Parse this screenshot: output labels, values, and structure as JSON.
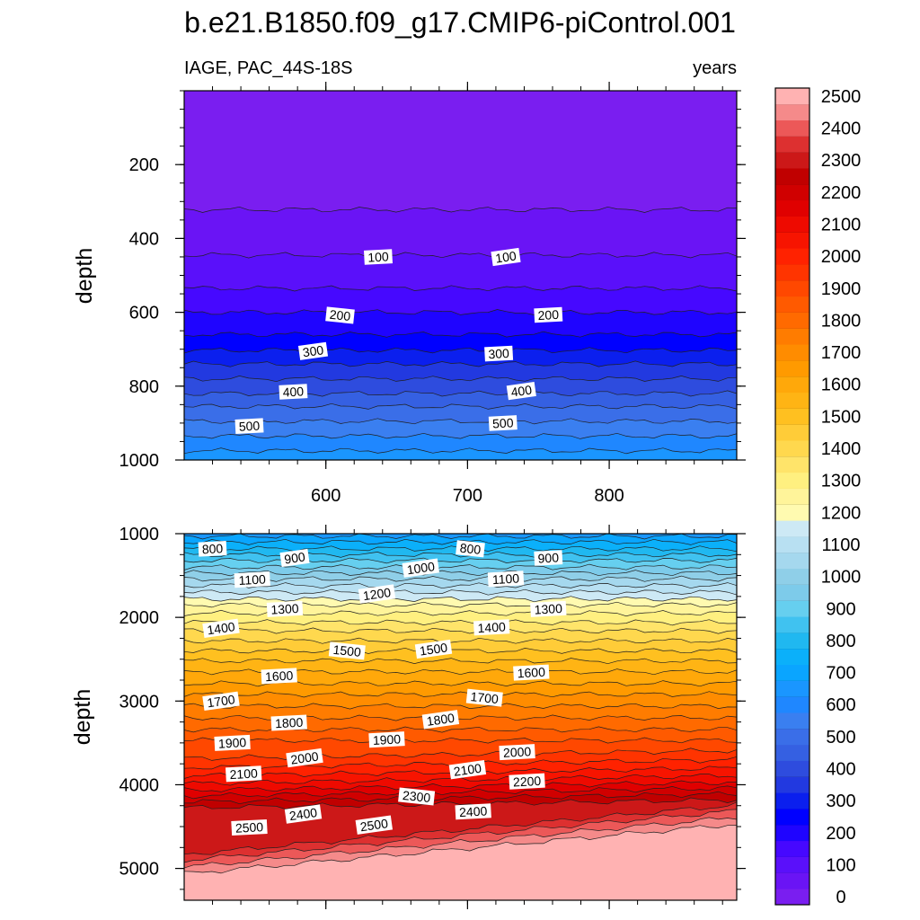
{
  "chart_data": {
    "type": "contour",
    "title": "b.e21.B1850.f09_g17.CMIP6-piControl.001",
    "left_subtitle": "IAGE, PAC_44S-18S",
    "right_subtitle": "years",
    "colorbar": {
      "levels": [
        0,
        50,
        100,
        150,
        200,
        250,
        300,
        350,
        400,
        450,
        500,
        550,
        600,
        650,
        700,
        750,
        800,
        850,
        900,
        950,
        1000,
        1050,
        1100,
        1150,
        1200,
        1250,
        1300,
        1350,
        1400,
        1450,
        1500,
        1550,
        1600,
        1650,
        1700,
        1750,
        1800,
        1850,
        1900,
        1950,
        2000,
        2050,
        2100,
        2150,
        2200,
        2250,
        2300,
        2350,
        2400,
        2450,
        2500
      ],
      "labels": [
        "0",
        "100",
        "200",
        "300",
        "400",
        "500",
        "600",
        "700",
        "800",
        "900",
        "1000",
        "1100",
        "1200",
        "1300",
        "1400",
        "1500",
        "1600",
        "1700",
        "1800",
        "1900",
        "2000",
        "2100",
        "2200",
        "2300",
        "2400",
        "2500"
      ],
      "colors": [
        "#7a1ef0",
        "#6a14f5",
        "#5a10fa",
        "#4608ff",
        "#1f04ff",
        "#0000ff",
        "#0b1fee",
        "#2239e0",
        "#2e4cde",
        "#3560e2",
        "#3a6ee8",
        "#3a7ff0",
        "#1f87ff",
        "#1a96ff",
        "#0aa5ff",
        "#0bb0fa",
        "#20b8f0",
        "#40c2f0",
        "#66cfef",
        "#7dcbea",
        "#8fcfe8",
        "#a5d8ee",
        "#b8e0f2",
        "#cde9f5",
        "#fffab0",
        "#fff49a",
        "#fff080",
        "#ffe46a",
        "#ffd84e",
        "#ffcc38",
        "#ffc020",
        "#ffb414",
        "#ffa80a",
        "#ff9a00",
        "#ff8c00",
        "#ff7c00",
        "#ff6a00",
        "#ff5a00",
        "#ff4800",
        "#ff3400",
        "#ff2200",
        "#f71400",
        "#ee0a00",
        "#e00000",
        "#d00000",
        "#c00000",
        "#cc1818",
        "#dd3030",
        "#ec5858",
        "#f58a8a",
        "#ffb2b2"
      ]
    },
    "panels": [
      {
        "name": "upper",
        "ylabel": "depth",
        "xticks": [
          600,
          700,
          800
        ],
        "yticks": [
          200,
          400,
          600,
          800,
          1000
        ],
        "xlim": [
          500,
          890
        ],
        "ylim": [
          1000,
          0
        ],
        "iso_depths": [
          {
            "value": 50,
            "depth": 322
          },
          {
            "value": 100,
            "depth": 445
          },
          {
            "value": 150,
            "depth": 535
          },
          {
            "value": 200,
            "depth": 600
          },
          {
            "value": 250,
            "depth": 660
          },
          {
            "value": 300,
            "depth": 703
          },
          {
            "value": 350,
            "depth": 740
          },
          {
            "value": 400,
            "depth": 780
          },
          {
            "value": 450,
            "depth": 820
          },
          {
            "value": 500,
            "depth": 855
          },
          {
            "value": 550,
            "depth": 895
          },
          {
            "value": 600,
            "depth": 935
          },
          {
            "value": 650,
            "depth": 975
          }
        ],
        "contour_labels": [
          {
            "text": "100",
            "x": 637,
            "depth": 450
          },
          {
            "text": "100",
            "x": 727,
            "depth": 450
          },
          {
            "text": "200",
            "x": 610,
            "depth": 608
          },
          {
            "text": "200",
            "x": 757,
            "depth": 607
          },
          {
            "text": "300",
            "x": 591,
            "depth": 705
          },
          {
            "text": "300",
            "x": 722,
            "depth": 712
          },
          {
            "text": "400",
            "x": 577,
            "depth": 815
          },
          {
            "text": "400",
            "x": 738,
            "depth": 813
          },
          {
            "text": "500",
            "x": 546,
            "depth": 908
          },
          {
            "text": "500",
            "x": 725,
            "depth": 900
          }
        ]
      },
      {
        "name": "lower",
        "ylabel": "depth",
        "xticks": [
          600,
          700,
          800
        ],
        "yticks": [
          1000,
          2000,
          3000,
          4000,
          5000
        ],
        "xlim": [
          500,
          890
        ],
        "ylim": [
          5380,
          1000
        ],
        "iso_depths": [
          {
            "value": 700,
            "depth": 1030
          },
          {
            "value": 750,
            "depth": 1100
          },
          {
            "value": 800,
            "depth": 1180
          },
          {
            "value": 850,
            "depth": 1250
          },
          {
            "value": 900,
            "depth": 1320
          },
          {
            "value": 950,
            "depth": 1400
          },
          {
            "value": 1000,
            "depth": 1470
          },
          {
            "value": 1050,
            "depth": 1540
          },
          {
            "value": 1100,
            "depth": 1620
          },
          {
            "value": 1150,
            "depth": 1700
          },
          {
            "value": 1200,
            "depth": 1780
          },
          {
            "value": 1250,
            "depth": 1850
          },
          {
            "value": 1300,
            "depth": 1950
          },
          {
            "value": 1350,
            "depth": 2060
          },
          {
            "value": 1400,
            "depth": 2160
          },
          {
            "value": 1450,
            "depth": 2280
          },
          {
            "value": 1500,
            "depth": 2400
          },
          {
            "value": 1550,
            "depth": 2520
          },
          {
            "value": 1600,
            "depth": 2650
          },
          {
            "value": 1650,
            "depth": 2790
          },
          {
            "value": 1700,
            "depth": 2920
          },
          {
            "value": 1750,
            "depth": 3060
          },
          {
            "value": 1800,
            "depth": 3200
          },
          {
            "value": 1850,
            "depth": 3340
          },
          {
            "value": 1900,
            "depth": 3470
          },
          {
            "value": 1950,
            "depth": 3590
          },
          {
            "value": 2000,
            "depth": 3700
          },
          {
            "value": 2050,
            "depth": 3800
          },
          {
            "value": 2100,
            "depth": 3890
          },
          {
            "value": 2150,
            "depth": 3970
          },
          {
            "value": 2200,
            "depth": 4040
          },
          {
            "value": 2250,
            "depth": 4110
          },
          {
            "value": 2300,
            "depth": 4180
          },
          {
            "value": 2350,
            "depth": 4240
          },
          {
            "value": 2400,
            "depth": 4310
          },
          {
            "value": 2450,
            "depth": 4390
          },
          {
            "value": 2500,
            "depth": 4470
          }
        ],
        "contour_labels": [
          {
            "text": "800",
            "x": 520,
            "depth": 1180
          },
          {
            "text": "900",
            "x": 578,
            "depth": 1290
          },
          {
            "text": "800",
            "x": 702,
            "depth": 1180
          },
          {
            "text": "900",
            "x": 757,
            "depth": 1290
          },
          {
            "text": "1000",
            "x": 667,
            "depth": 1410
          },
          {
            "text": "1100",
            "x": 548,
            "depth": 1550
          },
          {
            "text": "1100",
            "x": 727,
            "depth": 1540
          },
          {
            "text": "1200",
            "x": 636,
            "depth": 1720
          },
          {
            "text": "1300",
            "x": 571,
            "depth": 1900
          },
          {
            "text": "1300",
            "x": 757,
            "depth": 1900
          },
          {
            "text": "1400",
            "x": 526,
            "depth": 2130
          },
          {
            "text": "1400",
            "x": 717,
            "depth": 2120
          },
          {
            "text": "1500",
            "x": 615,
            "depth": 2400
          },
          {
            "text": "1500",
            "x": 676,
            "depth": 2380
          },
          {
            "text": "1600",
            "x": 567,
            "depth": 2700
          },
          {
            "text": "1600",
            "x": 745,
            "depth": 2660
          },
          {
            "text": "1700",
            "x": 526,
            "depth": 3000
          },
          {
            "text": "1700",
            "x": 712,
            "depth": 2960
          },
          {
            "text": "1800",
            "x": 574,
            "depth": 3260
          },
          {
            "text": "1800",
            "x": 681,
            "depth": 3220
          },
          {
            "text": "1900",
            "x": 534,
            "depth": 3500
          },
          {
            "text": "1900",
            "x": 643,
            "depth": 3460
          },
          {
            "text": "2000",
            "x": 585,
            "depth": 3680
          },
          {
            "text": "2000",
            "x": 735,
            "depth": 3610
          },
          {
            "text": "2100",
            "x": 542,
            "depth": 3870
          },
          {
            "text": "2100",
            "x": 700,
            "depth": 3820
          },
          {
            "text": "2200",
            "x": 742,
            "depth": 3960
          },
          {
            "text": "2300",
            "x": 664,
            "depth": 4140
          },
          {
            "text": "2400",
            "x": 584,
            "depth": 4350
          },
          {
            "text": "2400",
            "x": 704,
            "depth": 4320
          },
          {
            "text": "2500",
            "x": 546,
            "depth": 4510
          },
          {
            "text": "2500",
            "x": 634,
            "depth": 4480
          }
        ]
      }
    ]
  }
}
